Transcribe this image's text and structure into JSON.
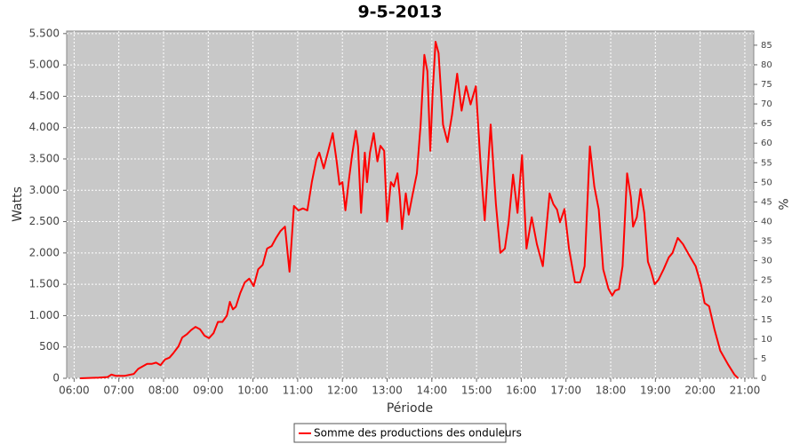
{
  "chart_data": {
    "type": "line",
    "title": "9-5-2013",
    "x_label": "Période",
    "y_label": "Watts",
    "y2_label": "%",
    "x": [
      "06:08",
      "06:33",
      "06:45",
      "06:50",
      "06:56",
      "07:08",
      "07:20",
      "07:26",
      "07:38",
      "07:44",
      "07:50",
      "07:56",
      "08:02",
      "08:08",
      "08:13",
      "08:20",
      "08:25",
      "08:31",
      "08:37",
      "08:43",
      "08:49",
      "08:55",
      "09:01",
      "09:07",
      "09:13",
      "09:19",
      "09:25",
      "09:29",
      "09:33",
      "09:37",
      "09:43",
      "09:49",
      "09:55",
      "10:01",
      "10:07",
      "10:13",
      "10:19",
      "10:25",
      "10:31",
      "10:37",
      "10:43",
      "10:49",
      "10:55",
      "11:01",
      "11:07",
      "11:13",
      "11:19",
      "11:25",
      "11:29",
      "11:35",
      "11:41",
      "11:47",
      "11:52",
      "11:56",
      "12:00",
      "12:04",
      "12:09",
      "12:13",
      "12:18",
      "12:21",
      "12:25",
      "12:30",
      "12:33",
      "12:37",
      "12:42",
      "12:47",
      "12:51",
      "12:56",
      "13:00",
      "13:05",
      "13:09",
      "13:14",
      "13:17",
      "13:20",
      "13:25",
      "13:29",
      "13:34",
      "13:40",
      "13:45",
      "13:50",
      "13:54",
      "13:58",
      "14:01",
      "14:05",
      "14:09",
      "14:15",
      "14:21",
      "14:27",
      "14:34",
      "14:40",
      "14:46",
      "14:52",
      "14:59",
      "15:05",
      "15:11",
      "15:19",
      "15:26",
      "15:32",
      "15:38",
      "15:43",
      "15:49",
      "15:55",
      "16:01",
      "16:07",
      "16:14",
      "16:21",
      "16:29",
      "16:38",
      "16:43",
      "16:48",
      "16:52",
      "16:58",
      "17:04",
      "17:12",
      "17:19",
      "17:25",
      "17:32",
      "17:38",
      "17:44",
      "17:50",
      "17:57",
      "18:02",
      "18:06",
      "18:11",
      "18:16",
      "18:22",
      "18:27",
      "18:30",
      "18:35",
      "18:40",
      "18:45",
      "18:50",
      "18:54",
      "18:59",
      "19:04",
      "19:11",
      "19:18",
      "19:23",
      "19:30",
      "19:37",
      "19:45",
      "19:54",
      "20:01",
      "20:06",
      "20:12",
      "20:19",
      "20:27",
      "20:37",
      "20:46",
      "20:51"
    ],
    "series": [
      {
        "name": "Somme des productions des onduleurs",
        "color": "#ff0000",
        "values": [
          0,
          10,
          20,
          60,
          40,
          40,
          70,
          150,
          230,
          230,
          250,
          210,
          300,
          330,
          400,
          510,
          650,
          700,
          770,
          820,
          780,
          680,
          640,
          720,
          900,
          900,
          1000,
          1220,
          1100,
          1140,
          1360,
          1530,
          1590,
          1470,
          1740,
          1810,
          2070,
          2110,
          2240,
          2350,
          2420,
          1700,
          2750,
          2680,
          2710,
          2680,
          3130,
          3490,
          3600,
          3350,
          3630,
          3910,
          3490,
          3090,
          3130,
          2680,
          3200,
          3560,
          3950,
          3700,
          2640,
          3600,
          3130,
          3600,
          3910,
          3460,
          3710,
          3630,
          2500,
          3130,
          3060,
          3270,
          2900,
          2380,
          2950,
          2610,
          2920,
          3270,
          4050,
          5160,
          4900,
          3630,
          4550,
          5370,
          5190,
          4050,
          3770,
          4200,
          4860,
          4270,
          4660,
          4370,
          4660,
          3490,
          2520,
          4050,
          2780,
          2000,
          2070,
          2490,
          3250,
          2640,
          3560,
          2070,
          2570,
          2140,
          1790,
          2950,
          2780,
          2690,
          2490,
          2700,
          2070,
          1530,
          1530,
          1790,
          3700,
          3060,
          2690,
          1740,
          1430,
          1320,
          1400,
          1420,
          1790,
          3270,
          2890,
          2420,
          2570,
          3020,
          2640,
          1860,
          1720,
          1500,
          1570,
          1740,
          1930,
          2000,
          2240,
          2140,
          1970,
          1790,
          1500,
          1200,
          1150,
          790,
          440,
          230,
          60,
          0
        ]
      }
    ],
    "xlim": [
      "05:50",
      "21:12"
    ],
    "xticks": [
      "06:00",
      "07:00",
      "08:00",
      "09:00",
      "10:00",
      "11:00",
      "12:00",
      "13:00",
      "14:00",
      "15:00",
      "16:00",
      "17:00",
      "18:00",
      "19:00",
      "20:00",
      "21:00"
    ],
    "ylim": [
      0,
      5540
    ],
    "yticks": [
      0,
      500,
      {
        "value": 1000,
        "label": "1.000"
      },
      {
        "value": 1500,
        "label": "1.500"
      },
      {
        "value": 2000,
        "label": "2.000"
      },
      {
        "value": 2500,
        "label": "2.500"
      },
      {
        "value": 3000,
        "label": "3.000"
      },
      {
        "value": 3500,
        "label": "3.500"
      },
      {
        "value": 4000,
        "label": "4.000"
      },
      {
        "value": 4500,
        "label": "4.500"
      },
      {
        "value": 5000,
        "label": "5.000"
      },
      {
        "value": 5500,
        "label": "5.500"
      }
    ],
    "y2lim": [
      0,
      88.6
    ],
    "y2ticks": [
      0,
      5,
      10,
      15,
      20,
      25,
      30,
      35,
      40,
      45,
      50,
      55,
      60,
      65,
      70,
      75,
      80,
      85
    ],
    "grid": true,
    "legend": "bottom"
  }
}
